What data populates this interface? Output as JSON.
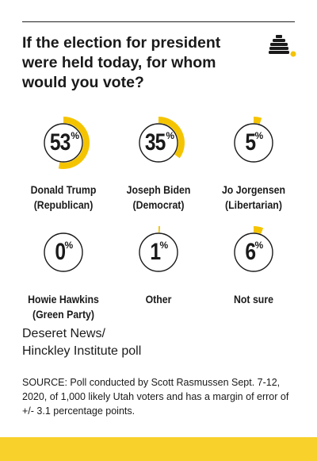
{
  "header": {
    "title": "If the election for president were held today, for whom would you vote?"
  },
  "colors": {
    "accent": "#f5c400",
    "ring": "#1a1a1a",
    "bar": "#f8d12a"
  },
  "chart_data": {
    "type": "pie",
    "unit": "%",
    "categories": [
      {
        "name": "Donald Trump",
        "sub": "(Republican)",
        "value": 53
      },
      {
        "name": "Joseph Biden",
        "sub": "(Democrat)",
        "value": 35
      },
      {
        "name": "Jo Jorgensen",
        "sub": "(Libertarian)",
        "value": 5
      },
      {
        "name": "Howie Hawkins",
        "sub": "(Green Party)",
        "value": 0
      },
      {
        "name": "Other",
        "sub": "",
        "value": 1
      },
      {
        "name": "Not sure",
        "sub": "",
        "value": 6
      }
    ]
  },
  "credit": {
    "line1": "Deseret News/",
    "line2": "Hinckley Institute poll"
  },
  "source": {
    "text": "SOURCE: Poll conducted by Scott Rasmussen Sept. 7-12, 2020, of 1,000 likely Utah voters and has a margin of error of +/- 3.1 percentage points."
  }
}
